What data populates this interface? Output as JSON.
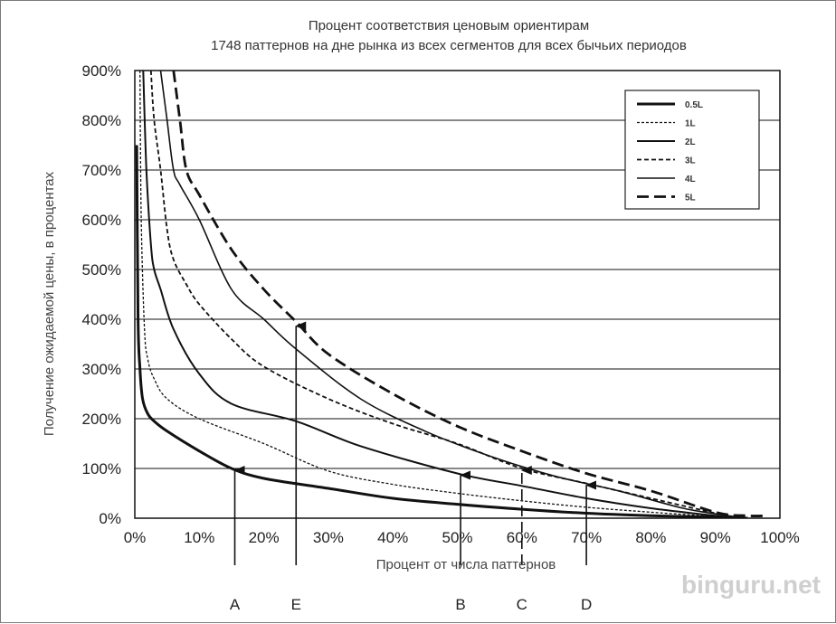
{
  "chart_data": {
    "type": "line",
    "title": "Процент соответствия ценовым ориентирам",
    "subtitle": "1748 паттернов на дне рынка из всех сегментов для всех бычьих периодов",
    "xlabel": "Процент от числа паттернов",
    "ylabel": "Получение ожидаемой цены, в процентах",
    "xlim": [
      0,
      100
    ],
    "ylim": [
      0,
      900
    ],
    "x_ticks": [
      "0%",
      "10%",
      "20%",
      "30%",
      "40%",
      "50%",
      "60%",
      "70%",
      "80%",
      "90%",
      "100%"
    ],
    "y_ticks": [
      "0%",
      "100%",
      "200%",
      "300%",
      "400%",
      "500%",
      "600%",
      "700%",
      "800%",
      "900%"
    ],
    "grid": "horizontal",
    "legend_position": "top-right",
    "series": [
      {
        "name": "0.5L",
        "style": "solid-thick",
        "x": [
          0.3,
          0.5,
          0.8,
          1.2,
          2,
          3,
          5,
          10,
          15,
          20,
          30,
          40,
          50,
          60,
          70,
          80,
          90,
          95
        ],
        "y": [
          750,
          400,
          300,
          240,
          210,
          195,
          175,
          135,
          100,
          80,
          60,
          40,
          28,
          18,
          10,
          5,
          2,
          0
        ]
      },
      {
        "name": "1L",
        "style": "dotted",
        "x": [
          0.8,
          1,
          1.5,
          2,
          3,
          5,
          10,
          20,
          30,
          40,
          50,
          60,
          70,
          80,
          88,
          92
        ],
        "y": [
          900,
          600,
          380,
          320,
          280,
          240,
          200,
          150,
          95,
          68,
          50,
          35,
          22,
          12,
          5,
          0
        ]
      },
      {
        "name": "2L",
        "style": "solid",
        "x": [
          1.3,
          1.8,
          2.5,
          3,
          4,
          6,
          10,
          15,
          25,
          35,
          50,
          60,
          70,
          80,
          90,
          94
        ],
        "y": [
          900,
          700,
          550,
          500,
          460,
          380,
          290,
          230,
          195,
          145,
          90,
          65,
          40,
          20,
          5,
          0
        ]
      },
      {
        "name": "3L",
        "style": "short-dashed",
        "x": [
          2.5,
          3,
          4,
          5,
          6,
          8,
          10,
          15,
          20,
          30,
          40,
          50,
          60,
          70,
          80,
          90,
          94
        ],
        "y": [
          900,
          800,
          700,
          580,
          520,
          470,
          430,
          360,
          305,
          240,
          190,
          150,
          100,
          70,
          40,
          10,
          0
        ]
      },
      {
        "name": "4L",
        "style": "solid-medium",
        "x": [
          4,
          5,
          6,
          7,
          10,
          15,
          20,
          25,
          35,
          45,
          55,
          65,
          75,
          85,
          92,
          95
        ],
        "y": [
          900,
          800,
          700,
          670,
          600,
          460,
          400,
          340,
          240,
          175,
          125,
          85,
          55,
          20,
          5,
          0
        ]
      },
      {
        "name": "5L",
        "style": "long-dashed",
        "x": [
          6,
          7,
          8,
          10,
          15,
          20,
          25,
          30,
          40,
          50,
          60,
          70,
          80,
          90,
          95,
          98
        ],
        "y": [
          900,
          800,
          700,
          650,
          540,
          460,
          395,
          330,
          250,
          185,
          135,
          90,
          55,
          12,
          5,
          5
        ]
      }
    ],
    "markers": [
      {
        "label": "A",
        "x": 15.5,
        "y": 100
      },
      {
        "label": "E",
        "x": 25,
        "y": 390
      },
      {
        "label": "B",
        "x": 50.5,
        "y": 90
      },
      {
        "label": "C",
        "x": 60,
        "y": 100,
        "dashed": true
      },
      {
        "label": "D",
        "x": 70,
        "y": 70
      }
    ]
  },
  "watermark": "binguru.net"
}
